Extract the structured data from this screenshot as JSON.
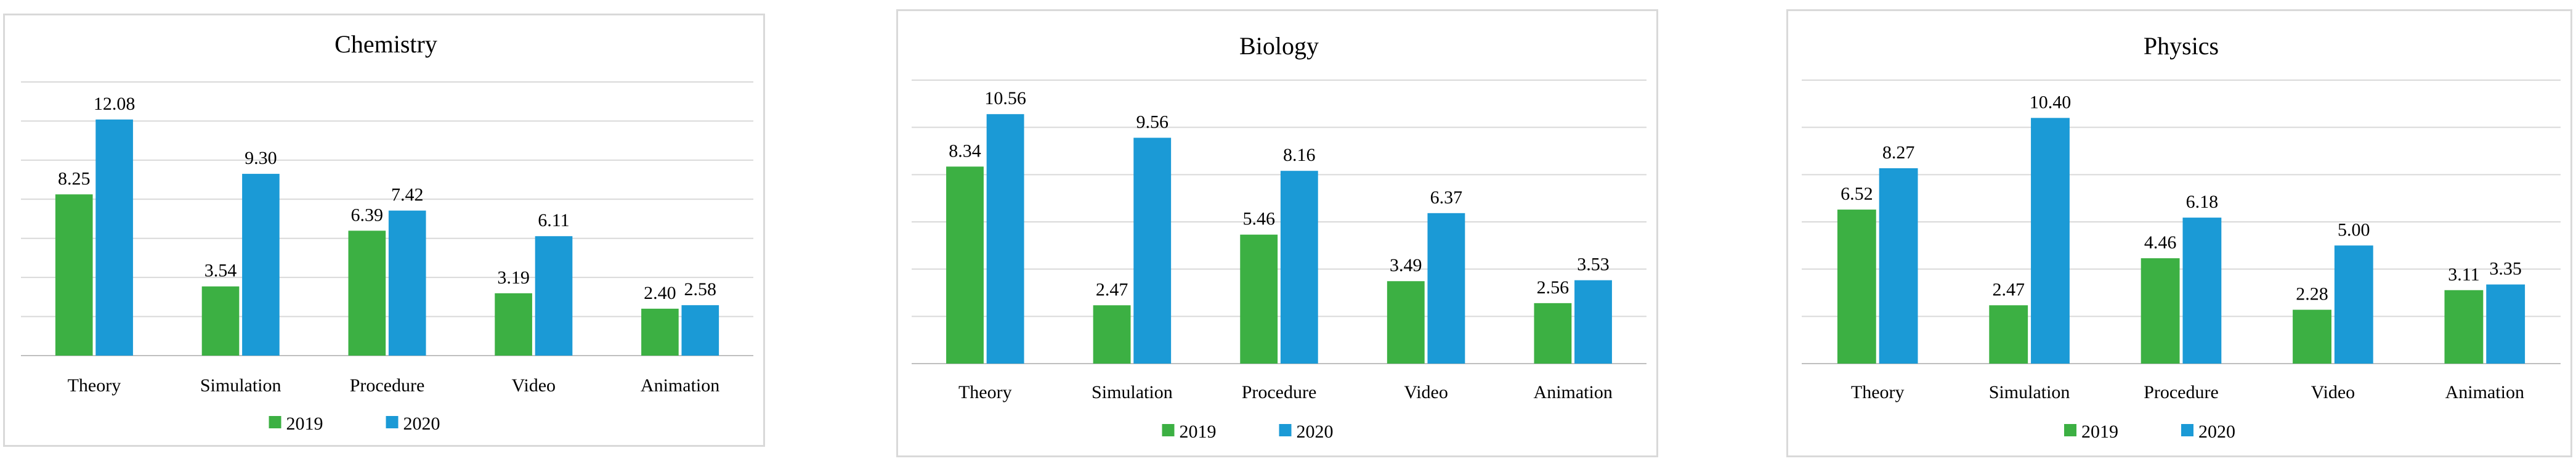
{
  "chart_data": [
    {
      "type": "bar",
      "title": "Chemistry",
      "categories": [
        "Theory",
        "Simulation",
        "Procedure",
        "Video",
        "Animation"
      ],
      "series": [
        {
          "name": "2019",
          "color": "#3cb043",
          "values": [
            8.25,
            3.54,
            6.39,
            3.19,
            2.4
          ],
          "labels": [
            "8.25",
            "3.54",
            "6.39",
            "3.19",
            "2.40"
          ]
        },
        {
          "name": "2020",
          "color": "#1b9ad6",
          "values": [
            12.08,
            9.3,
            7.42,
            6.11,
            2.58
          ],
          "labels": [
            "12.08",
            "9.30",
            "7.42",
            "6.11",
            "2.58"
          ]
        }
      ],
      "ylim": [
        0,
        14
      ],
      "grid": true,
      "legend": "bottom",
      "xlabel": "",
      "ylabel": ""
    },
    {
      "type": "bar",
      "title": "Biology",
      "categories": [
        "Theory",
        "Simulation",
        "Procedure",
        "Video",
        "Animation"
      ],
      "series": [
        {
          "name": "2019",
          "color": "#3cb043",
          "values": [
            8.34,
            2.47,
            5.46,
            3.49,
            2.56
          ],
          "labels": [
            "8.34",
            "2.47",
            "5.46",
            "3.49",
            "2.56"
          ]
        },
        {
          "name": "2020",
          "color": "#1b9ad6",
          "values": [
            10.56,
            9.56,
            8.16,
            6.37,
            3.53
          ],
          "labels": [
            "10.56",
            "9.56",
            "8.16",
            "6.37",
            "3.53"
          ]
        }
      ],
      "ylim": [
        0,
        12
      ],
      "grid": true,
      "legend": "bottom",
      "xlabel": "",
      "ylabel": ""
    },
    {
      "type": "bar",
      "title": "Physics",
      "categories": [
        "Theory",
        "Simulation",
        "Procedure",
        "Video",
        "Animation"
      ],
      "series": [
        {
          "name": "2019",
          "color": "#3cb043",
          "values": [
            6.52,
            2.47,
            4.46,
            2.28,
            3.11
          ],
          "labels": [
            "6.52",
            "2.47",
            "4.46",
            "2.28",
            "3.11"
          ]
        },
        {
          "name": "2020",
          "color": "#1b9ad6",
          "values": [
            8.27,
            10.4,
            6.18,
            5.0,
            3.35
          ],
          "labels": [
            "8.27",
            "10.40",
            "6.18",
            "5.00",
            "3.35"
          ]
        }
      ],
      "ylim": [
        0,
        12
      ],
      "grid": true,
      "legend": "bottom",
      "xlabel": "",
      "ylabel": ""
    }
  ]
}
